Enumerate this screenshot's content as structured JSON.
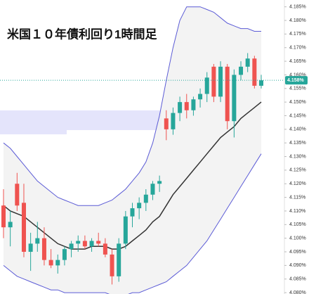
{
  "chart_data": {
    "type": "candlestick",
    "title": "米国１０年債利回り1時間足",
    "ylim": [
      4.0795,
      4.1875
    ],
    "yticks": [
      {
        "value": 4.185,
        "label": "4.185%"
      },
      {
        "value": 4.18,
        "label": "4.180%"
      },
      {
        "value": 4.175,
        "label": "4.175%"
      },
      {
        "value": 4.17,
        "label": "4.170%"
      },
      {
        "value": 4.165,
        "label": "4.165%"
      },
      {
        "value": 4.16,
        "label": "4.160%"
      },
      {
        "value": 4.155,
        "label": "4.155%"
      },
      {
        "value": 4.15,
        "label": "4.150%"
      },
      {
        "value": 4.145,
        "label": "4.145%"
      },
      {
        "value": 4.14,
        "label": "4.140%"
      },
      {
        "value": 4.135,
        "label": "4.135%"
      },
      {
        "value": 4.13,
        "label": "4.130%"
      },
      {
        "value": 4.125,
        "label": "4.125%"
      },
      {
        "value": 4.12,
        "label": "4.120%"
      },
      {
        "value": 4.115,
        "label": "4.115%"
      },
      {
        "value": 4.11,
        "label": "4.110%"
      },
      {
        "value": 4.105,
        "label": "4.105%"
      },
      {
        "value": 4.1,
        "label": "4.100%"
      },
      {
        "value": 4.095,
        "label": "4.095%"
      },
      {
        "value": 4.09,
        "label": "4.090%"
      },
      {
        "value": 4.085,
        "label": "4.085%"
      },
      {
        "value": 4.08,
        "label": "4.080%"
      }
    ],
    "last_price": {
      "value": 4.158,
      "label": "4.158%"
    },
    "up_color": "#26a69a",
    "down_color": "#ef5350",
    "candles": [
      {
        "open": 4.112,
        "high": 4.118,
        "low": 4.1,
        "close": 4.104
      },
      {
        "open": 4.104,
        "high": 4.11,
        "low": 4.097,
        "close": 4.106
      },
      {
        "open": 4.12,
        "high": 4.124,
        "low": 4.11,
        "close": 4.112
      },
      {
        "open": 4.113,
        "high": 4.12,
        "low": 4.093,
        "close": 4.095
      },
      {
        "open": 4.095,
        "high": 4.102,
        "low": 4.088,
        "close": 4.098
      },
      {
        "open": 4.098,
        "high": 4.106,
        "low": 4.095,
        "close": 4.1
      },
      {
        "open": 4.1,
        "high": 4.104,
        "low": 4.09,
        "close": 4.092
      },
      {
        "open": 4.092,
        "high": 4.096,
        "low": 4.089,
        "close": 4.09
      },
      {
        "open": 4.09,
        "high": 4.094,
        "low": 4.087,
        "close": 4.092
      },
      {
        "open": 4.092,
        "high": 4.097,
        "low": 4.09,
        "close": 4.096
      },
      {
        "open": 4.096,
        "high": 4.099,
        "low": 4.093,
        "close": 4.098
      },
      {
        "open": 4.098,
        "high": 4.101,
        "low": 4.095,
        "close": 4.099
      },
      {
        "open": 4.099,
        "high": 4.101,
        "low": 4.096,
        "close": 4.097
      },
      {
        "open": 4.097,
        "high": 4.1,
        "low": 4.095,
        "close": 4.099
      },
      {
        "open": 4.099,
        "high": 4.102,
        "low": 4.097,
        "close": 4.098
      },
      {
        "open": 4.098,
        "high": 4.1,
        "low": 4.093,
        "close": 4.094
      },
      {
        "open": 4.094,
        "high": 4.096,
        "low": 4.083,
        "close": 4.086
      },
      {
        "open": 4.086,
        "high": 4.1,
        "low": 4.084,
        "close": 4.098
      },
      {
        "open": 4.098,
        "high": 4.11,
        "low": 4.096,
        "close": 4.108
      },
      {
        "open": 4.108,
        "high": 4.113,
        "low": 4.104,
        "close": 4.111
      },
      {
        "open": 4.111,
        "high": 4.115,
        "low": 4.107,
        "close": 4.113
      },
      {
        "open": 4.113,
        "high": 4.118,
        "low": 4.11,
        "close": 4.116
      },
      {
        "open": 4.116,
        "high": 4.121,
        "low": 4.114,
        "close": 4.12
      },
      {
        "open": 4.12,
        "high": 4.123,
        "low": 4.117,
        "close": 4.121
      },
      {
        "open": 4.144,
        "high": 4.147,
        "low": 4.136,
        "close": 4.14
      },
      {
        "open": 4.14,
        "high": 4.148,
        "low": 4.138,
        "close": 4.146
      },
      {
        "open": 4.146,
        "high": 4.152,
        "low": 4.143,
        "close": 4.15
      },
      {
        "open": 4.15,
        "high": 4.153,
        "low": 4.144,
        "close": 4.147
      },
      {
        "open": 4.147,
        "high": 4.152,
        "low": 4.145,
        "close": 4.151
      },
      {
        "open": 4.151,
        "high": 4.155,
        "low": 4.148,
        "close": 4.153
      },
      {
        "open": 4.153,
        "high": 4.161,
        "low": 4.15,
        "close": 4.159
      },
      {
        "open": 4.163,
        "high": 4.164,
        "low": 4.15,
        "close": 4.152
      },
      {
        "open": 4.152,
        "high": 4.165,
        "low": 4.15,
        "close": 4.163
      },
      {
        "open": 4.163,
        "high": 4.164,
        "low": 4.14,
        "close": 4.143
      },
      {
        "open": 4.143,
        "high": 4.162,
        "low": 4.137,
        "close": 4.16
      },
      {
        "open": 4.16,
        "high": 4.165,
        "low": 4.158,
        "close": 4.163
      },
      {
        "open": 4.163,
        "high": 4.168,
        "low": 4.161,
        "close": 4.166
      },
      {
        "open": 4.166,
        "high": 4.167,
        "low": 4.155,
        "close": 4.156
      },
      {
        "open": 4.156,
        "high": 4.16,
        "low": 4.155,
        "close": 4.158
      }
    ],
    "series": [
      {
        "color": "#5b5bd6",
        "values": [
          4.135,
          4.133,
          4.13,
          4.127,
          4.124,
          4.121,
          4.119,
          4.117,
          4.115,
          4.114,
          4.113,
          4.112,
          4.112,
          4.112,
          4.112,
          4.113,
          4.114,
          4.116,
          4.118,
          4.121,
          4.124,
          4.128,
          4.135,
          4.145,
          4.158,
          4.17,
          4.18,
          4.185,
          4.185,
          4.185,
          4.184,
          4.183,
          4.181,
          4.179,
          4.178,
          4.177,
          4.177,
          4.176,
          4.176
        ]
      },
      {
        "color": "#5b5bd6",
        "values": [
          4.09,
          4.088,
          4.086,
          4.085,
          4.084,
          4.083,
          4.082,
          4.081,
          4.081,
          4.08,
          4.08,
          4.08,
          4.08,
          4.08,
          4.08,
          4.08,
          4.079,
          4.079,
          4.079,
          4.08,
          4.08,
          4.081,
          4.082,
          4.083,
          4.084,
          4.086,
          4.088,
          4.09,
          4.093,
          4.096,
          4.099,
          4.103,
          4.107,
          4.111,
          4.115,
          4.119,
          4.123,
          4.127,
          4.131
        ]
      },
      {
        "color": "#333333",
        "values": [
          4.112,
          4.11,
          4.109,
          4.108,
          4.106,
          4.104,
          4.102,
          4.1,
          4.098,
          4.097,
          4.096,
          4.096,
          4.096,
          4.097,
          4.097,
          4.097,
          4.096,
          4.096,
          4.097,
          4.099,
          4.101,
          4.103,
          4.106,
          4.108,
          4.112,
          4.116,
          4.119,
          4.122,
          4.125,
          4.128,
          4.131,
          4.134,
          4.137,
          4.139,
          4.141,
          4.144,
          4.146,
          4.148,
          4.15
        ]
      }
    ]
  }
}
